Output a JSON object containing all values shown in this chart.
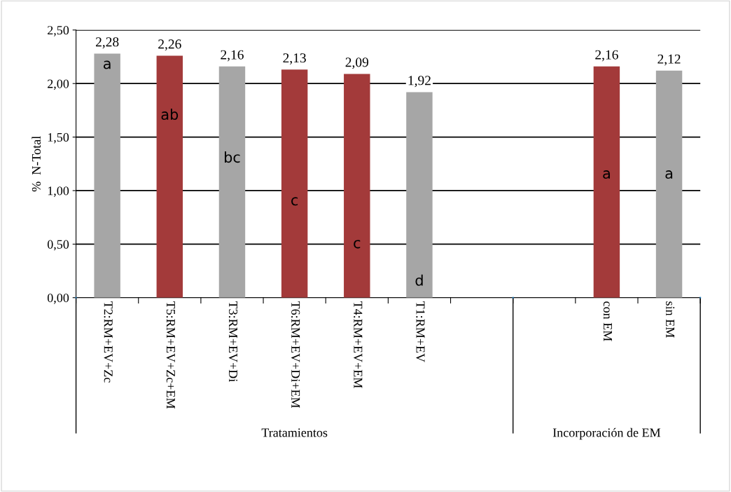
{
  "chart_data": {
    "type": "bar",
    "ylabel": "%  N-Total",
    "categories": [
      "T2:RM+EV+Zc",
      "T5:RM+EV+Zc+EM",
      "T3:RM+EV+Di",
      "T6:RM+EV+Di+EM",
      "T4:RM+EV+EM",
      "T1:RM+EV",
      null,
      null,
      "con EM",
      "sin EM"
    ],
    "values": [
      2.28,
      2.26,
      2.16,
      2.13,
      2.09,
      1.92,
      null,
      null,
      2.16,
      2.12
    ],
    "colors": [
      "#a6a6a6",
      "#a33a3a",
      "#a6a6a6",
      "#a33a3a",
      "#a33a3a",
      "#a6a6a6",
      null,
      null,
      "#a33a3a",
      "#a6a6a6"
    ],
    "value_labels": [
      "2,28",
      "2,26",
      "2,16",
      "2,13",
      "2,09",
      "1,92",
      null,
      null,
      "2,16",
      "2,12"
    ],
    "ylim": [
      0,
      2.5
    ],
    "yticks": [
      {
        "value": 0,
        "label": "0,00"
      },
      {
        "value": 0.5,
        "label": "0,50"
      },
      {
        "value": 1,
        "label": "1,00"
      },
      {
        "value": 1.5,
        "label": "1,50"
      },
      {
        "value": 2,
        "label": "2,00"
      },
      {
        "value": 2.5,
        "label": "2,50"
      }
    ],
    "grid": "y",
    "annotations": [
      "a",
      "ab",
      "bc",
      "c",
      "c",
      "d",
      "a",
      "a",
      "Tratamientos",
      "Incorporación de EM"
    ]
  }
}
